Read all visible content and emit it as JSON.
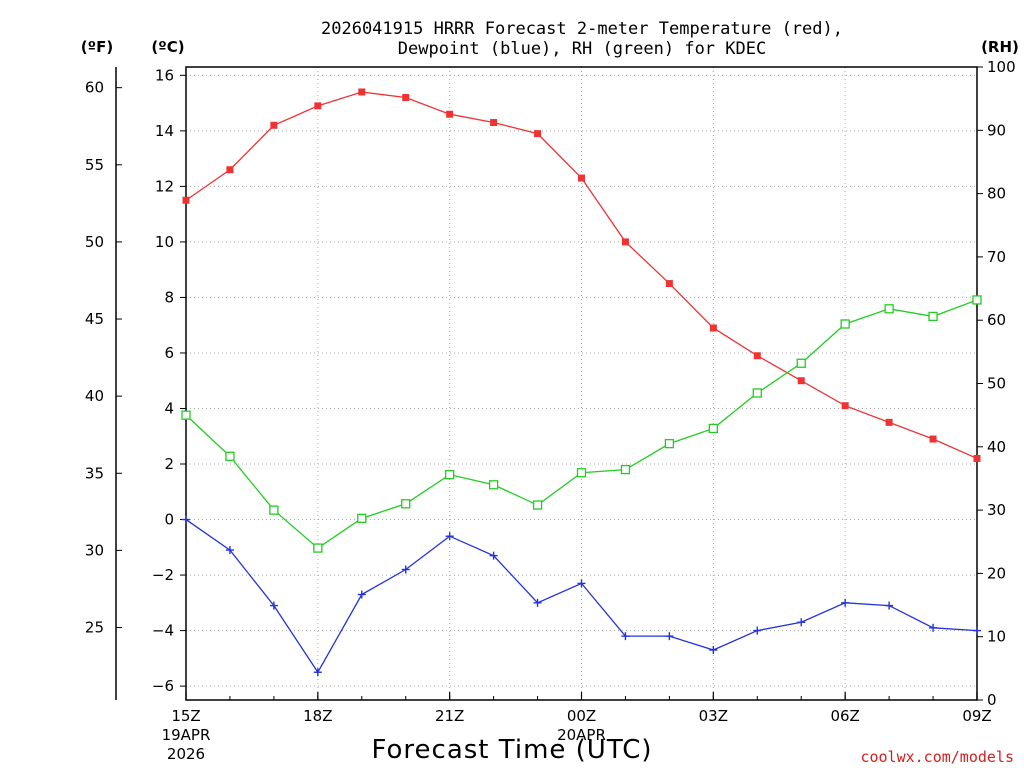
{
  "chart_data": {
    "type": "line",
    "title_line1": "2026041915 HRRR Forecast 2-meter Temperature (red),",
    "title_line2": "Dewpoint (blue), RH (green) for KDEC",
    "left_unit_f": "(ºF)",
    "left_unit_c": "(ºC)",
    "right_unit": "(RH)",
    "xlabel": "Forecast Time (UTC)",
    "credit": "coolwx.com/models",
    "ylim_c": [
      -6.5,
      16.3
    ],
    "ylim_rh": [
      0,
      100
    ],
    "c_ticks": [
      -6,
      -4,
      -2,
      0,
      2,
      4,
      6,
      8,
      10,
      12,
      14,
      16
    ],
    "c_tick_labels": [
      "−6",
      "−4",
      "−2",
      "0",
      "2",
      "4",
      "6",
      "8",
      "10",
      "12",
      "14",
      "16"
    ],
    "f_ticks": [
      25,
      30,
      35,
      40,
      45,
      50,
      55,
      60
    ],
    "rh_ticks": [
      0,
      10,
      20,
      30,
      40,
      50,
      60,
      70,
      80,
      90,
      100
    ],
    "x_hours": [
      0,
      1,
      2,
      3,
      4,
      5,
      6,
      7,
      8,
      9,
      10,
      11,
      12,
      13,
      14,
      15,
      16,
      17,
      18
    ],
    "x_ticks": [
      {
        "hour": 0,
        "label": "15Z",
        "sub1": "19APR",
        "sub2": "2026"
      },
      {
        "hour": 3,
        "label": "18Z",
        "sub1": "",
        "sub2": ""
      },
      {
        "hour": 6,
        "label": "21Z",
        "sub1": "",
        "sub2": ""
      },
      {
        "hour": 9,
        "label": "00Z",
        "sub1": "20APR",
        "sub2": ""
      },
      {
        "hour": 12,
        "label": "03Z",
        "sub1": "",
        "sub2": ""
      },
      {
        "hour": 15,
        "label": "06Z",
        "sub1": "",
        "sub2": ""
      },
      {
        "hour": 18,
        "label": "09Z",
        "sub1": "",
        "sub2": ""
      }
    ],
    "series": [
      {
        "name": "2-meter Temperature",
        "axis": "C",
        "color": "#ee3333",
        "marker": "filled-square",
        "values": [
          11.5,
          12.6,
          14.2,
          14.9,
          15.4,
          15.2,
          14.6,
          14.3,
          13.9,
          12.3,
          10.0,
          8.5,
          6.9,
          5.9,
          5.0,
          4.1,
          3.5,
          2.9,
          2.2
        ]
      },
      {
        "name": "Dewpoint",
        "axis": "C",
        "color": "#2233dd",
        "marker": "plus",
        "values": [
          0.0,
          -1.1,
          -3.1,
          -5.5,
          -2.7,
          -1.8,
          -0.6,
          -1.3,
          -3.0,
          -2.3,
          -4.2,
          -4.2,
          -4.7,
          -4.0,
          -3.7,
          -3.0,
          -3.1,
          -3.9,
          -4.0
        ]
      },
      {
        "name": "RH",
        "axis": "RH",
        "color": "#22cc22",
        "marker": "open-square",
        "values": [
          45,
          38.5,
          30,
          24,
          28.7,
          31,
          35.6,
          34,
          30.8,
          35.9,
          36.4,
          40.5,
          42.9,
          48.5,
          53.2,
          59.4,
          61.8,
          60.6,
          63.2
        ]
      }
    ]
  }
}
